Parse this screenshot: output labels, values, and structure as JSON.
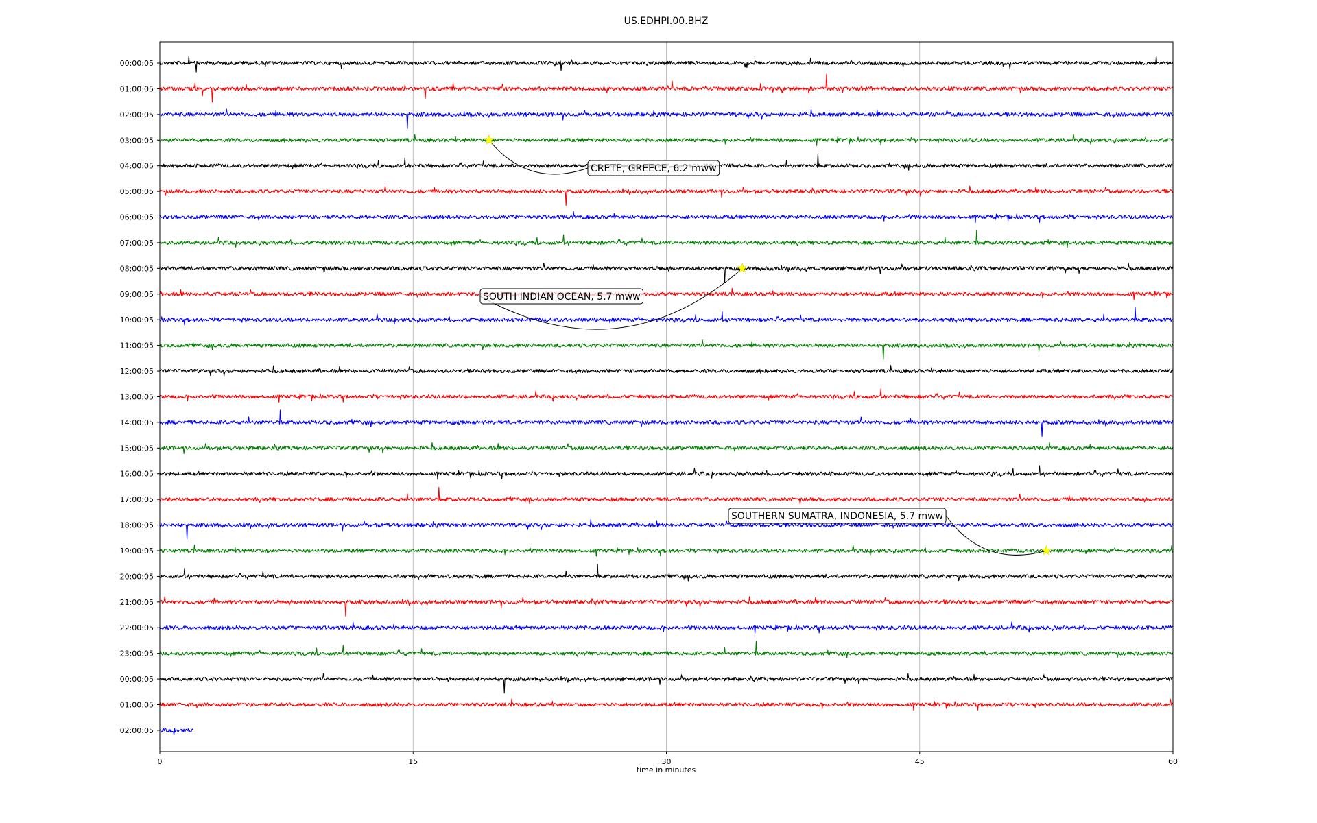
{
  "chart_data": {
    "type": "line",
    "title": "US.EDHPI.00.BHZ",
    "xlabel": "time in minutes",
    "ylabel": "",
    "xlim": [
      0,
      60
    ],
    "xticks": [
      0,
      15,
      30,
      45,
      60
    ],
    "xtick_labels": [
      "0",
      "15",
      "30",
      "45",
      "60"
    ],
    "grid": "vertical",
    "trace_colors": [
      "#000000",
      "#ff0000",
      "#0000ff",
      "#008000"
    ],
    "row_labels": [
      "00:00:05",
      "01:00:05",
      "02:00:05",
      "03:00:05",
      "04:00:05",
      "05:00:05",
      "06:00:05",
      "07:00:05",
      "08:00:05",
      "09:00:05",
      "10:00:05",
      "11:00:05",
      "12:00:05",
      "13:00:05",
      "14:00:05",
      "15:00:05",
      "16:00:05",
      "17:00:05",
      "18:00:05",
      "19:00:05",
      "20:00:05",
      "21:00:05",
      "22:00:05",
      "23:00:05",
      "00:00:05",
      "01:00:05",
      "02:00:05"
    ],
    "last_row_end_minute": 2,
    "events": [
      {
        "label": "CRETE, GREECE, 6.2 mww",
        "row": 3,
        "minute": 19.5
      },
      {
        "label": "SOUTH INDIAN OCEAN, 5.7 mww",
        "row": 8,
        "minute": 34.5
      },
      {
        "label": "SOUTHERN SUMATRA, INDONESIA, 5.7 mww",
        "row": 19,
        "minute": 52.5
      }
    ],
    "star_color": "#ffff00"
  }
}
